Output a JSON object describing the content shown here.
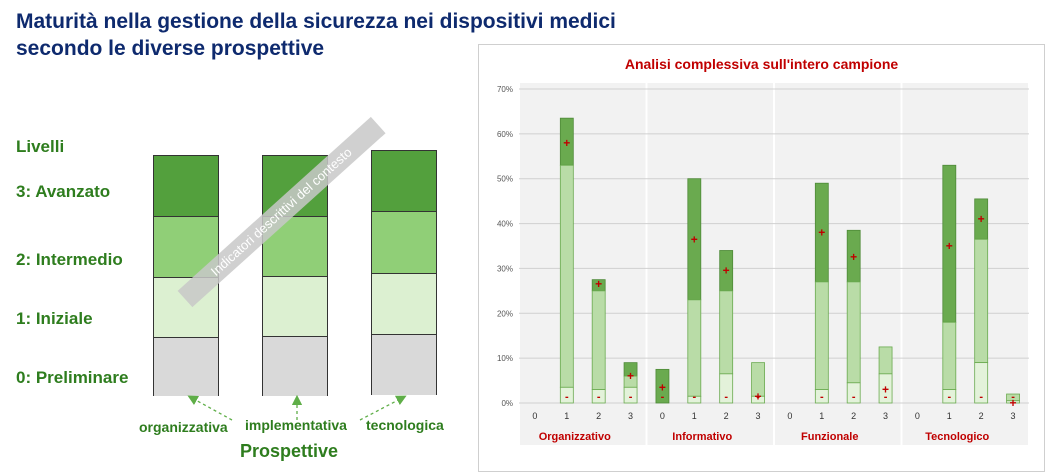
{
  "title": {
    "line1": "Maturità nella gestione della sicurezza nei dispositivi medici",
    "line2": "secondo le diverse prospettive"
  },
  "levels": {
    "heading": "Livelli",
    "items": [
      "3:  Avanzato",
      "2:  Intermedio",
      "1:  Iniziale",
      "0:  Preliminare"
    ]
  },
  "diagonal_label": "Indicatori descrittivi del contesto",
  "perspectives": {
    "title": "Prospettive",
    "items": [
      "organizzativa",
      "implementativa",
      "tecnologica"
    ]
  },
  "colors": {
    "dark_green": "#53a03d",
    "mid_green": "#90cf77",
    "light_green": "#dcf0d1",
    "grey": "#d9d9d9",
    "text_green": "#2e7d1e",
    "title_blue": "#0e2a6e",
    "chart_red": "#c00000"
  },
  "chart_data": {
    "type": "bar",
    "title": "Analisi complessiva sull'intero campione",
    "ylim": [
      0,
      70
    ],
    "yticks": [
      "0%",
      "10%",
      "20%",
      "30%",
      "40%",
      "50%",
      "60%",
      "70%"
    ],
    "grid": true,
    "groups": [
      {
        "name": "Organizzativo",
        "categories": [
          "0",
          "1",
          "2",
          "3"
        ],
        "min": [
          0,
          3.5,
          3,
          3.5
        ],
        "mid": [
          0,
          53,
          25,
          6
        ],
        "max": [
          0,
          63.5,
          27.5,
          9
        ],
        "avg": [
          0,
          58,
          26.5,
          6
        ]
      },
      {
        "name": "Informativo",
        "categories": [
          "0",
          "1",
          "2",
          "3"
        ],
        "min": [
          0,
          1.5,
          6.5,
          1.5
        ],
        "mid": [
          0,
          23,
          25,
          9
        ],
        "max": [
          7.5,
          50,
          34,
          9
        ],
        "avg": [
          3.5,
          36.5,
          29.5,
          1.5
        ]
      },
      {
        "name": "Funzionale",
        "categories": [
          "0",
          "1",
          "2",
          "3"
        ],
        "min": [
          0,
          3,
          4.5,
          6.5
        ],
        "mid": [
          0,
          27,
          27,
          12.5
        ],
        "max": [
          0,
          49,
          38.5,
          12.5
        ],
        "avg": [
          0,
          38,
          32.5,
          3
        ]
      },
      {
        "name": "Tecnologico",
        "categories": [
          "0",
          "1",
          "2",
          "3"
        ],
        "min": [
          0,
          3,
          9,
          0.5
        ],
        "mid": [
          0,
          18,
          36.5,
          2
        ],
        "max": [
          0,
          53,
          45.5,
          2
        ],
        "avg": [
          0,
          35,
          41,
          0
        ]
      }
    ],
    "avg_marker": "+",
    "min_marker": "-"
  }
}
